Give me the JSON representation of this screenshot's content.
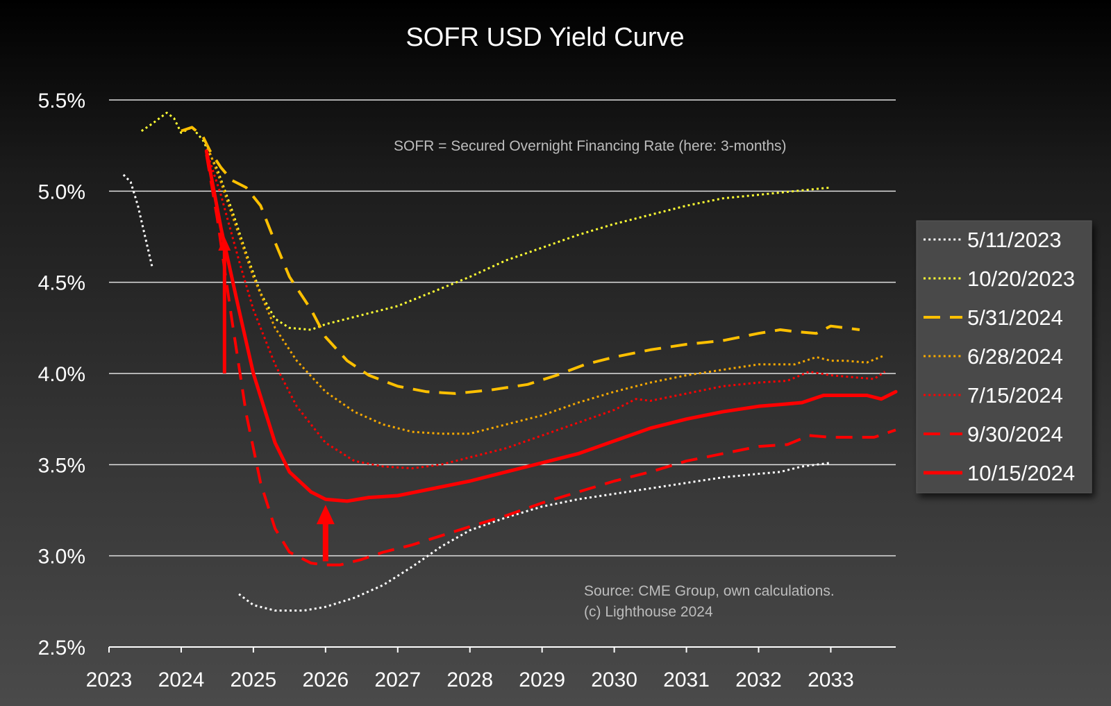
{
  "colors": {
    "white": "#ffffff",
    "yellow": "#ffff33",
    "gold": "#ffc000",
    "orange": "#f5a800",
    "red": "#ff0000",
    "grid": "#e0e0e0",
    "note_text": "#bdbdbd",
    "legend_bg": "#4a4a4a"
  },
  "chart_data": {
    "type": "line",
    "title": "SOFR USD Yield Curve",
    "xlabel": "",
    "ylabel": "",
    "xlim": [
      2023,
      2033.9
    ],
    "ylim": [
      2.5,
      5.5
    ],
    "x_ticks": [
      2023,
      2024,
      2025,
      2026,
      2027,
      2028,
      2029,
      2030,
      2031,
      2032,
      2033
    ],
    "x_tick_labels": [
      "2023",
      "2024",
      "2025",
      "2026",
      "2027",
      "2028",
      "2029",
      "2030",
      "2031",
      "2032",
      "2033"
    ],
    "y_ticks": [
      2.5,
      3.0,
      3.5,
      4.0,
      4.5,
      5.0,
      5.5
    ],
    "y_tick_labels": [
      "2.5%",
      "3.0%",
      "3.5%",
      "4.0%",
      "4.5%",
      "5.0%",
      "5.5%"
    ],
    "grid": "horizontal",
    "legend_position": "right",
    "annotations": [
      "SOFR = Secured Overnight Financing Rate (here: 3-months)",
      "Source: CME Group, own calculations.",
      "(c) Lighthouse 2024"
    ],
    "arrow_annotations": [
      {
        "from": [
          2024.6,
          4.0
        ],
        "to": [
          2024.6,
          4.75
        ],
        "color": "red"
      },
      {
        "from": [
          2026.0,
          2.97
        ],
        "to": [
          2026.0,
          3.28
        ],
        "color": "red"
      }
    ],
    "series": [
      {
        "name": "5/11/2023",
        "style": "dotted",
        "color": "white",
        "width": 3,
        "x": [
          2023.2,
          2023.3,
          2023.4,
          2023.5,
          2023.6
        ],
        "y": [
          5.09,
          5.05,
          4.92,
          4.75,
          4.58
        ]
      },
      {
        "name": "5/11/2023",
        "legend": false,
        "style": "dotted",
        "color": "white",
        "width": 3,
        "x": [
          2024.8,
          2025.0,
          2025.3,
          2025.7,
          2026.0,
          2026.4,
          2026.8,
          2027.2,
          2027.6,
          2028.0,
          2028.5,
          2029.0,
          2029.5,
          2030.0,
          2030.5,
          2031.0,
          2031.5,
          2032.0,
          2032.3,
          2032.6,
          2033.0
        ],
        "y": [
          2.79,
          2.73,
          2.7,
          2.7,
          2.72,
          2.77,
          2.84,
          2.94,
          3.05,
          3.14,
          3.21,
          3.27,
          3.31,
          3.34,
          3.37,
          3.4,
          3.43,
          3.45,
          3.46,
          3.49,
          3.51
        ]
      },
      {
        "name": "10/20/2023",
        "style": "dotted",
        "color": "yellow",
        "width": 3,
        "x": [
          2023.45,
          2023.6,
          2023.8,
          2023.9,
          2024.0,
          2024.15,
          2024.3,
          2024.5,
          2024.7,
          2024.9,
          2025.1,
          2025.3,
          2025.5,
          2025.8,
          2026.0,
          2026.5,
          2027.0,
          2027.5,
          2028.0,
          2028.5,
          2029.0,
          2029.5,
          2030.0,
          2030.5,
          2031.0,
          2031.5,
          2032.0,
          2032.5,
          2033.0
        ],
        "y": [
          5.33,
          5.37,
          5.43,
          5.4,
          5.32,
          5.35,
          5.28,
          5.12,
          4.9,
          4.66,
          4.44,
          4.3,
          4.25,
          4.24,
          4.27,
          4.32,
          4.37,
          4.45,
          4.53,
          4.62,
          4.69,
          4.76,
          4.82,
          4.87,
          4.92,
          4.96,
          4.98,
          5.0,
          5.02
        ]
      },
      {
        "name": "5/31/2024",
        "style": "dashed",
        "color": "gold",
        "width": 4,
        "x": [
          2024.0,
          2024.15,
          2024.3,
          2024.4,
          2024.55,
          2024.7,
          2024.9,
          2025.1,
          2025.3,
          2025.5,
          2025.8,
          2026.0,
          2026.3,
          2026.6,
          2027.0,
          2027.4,
          2027.8,
          2028.3,
          2028.8,
          2029.2,
          2029.6,
          2030.0,
          2030.5,
          2031.0,
          2031.5,
          2032.0,
          2032.3,
          2032.5,
          2032.8,
          2033.0,
          2033.2,
          2033.4
        ],
        "y": [
          5.33,
          5.35,
          5.3,
          5.22,
          5.13,
          5.06,
          5.02,
          4.92,
          4.72,
          4.53,
          4.35,
          4.2,
          4.07,
          3.99,
          3.93,
          3.9,
          3.89,
          3.91,
          3.94,
          3.99,
          4.05,
          4.09,
          4.13,
          4.16,
          4.18,
          4.22,
          4.24,
          4.23,
          4.22,
          4.26,
          4.25,
          4.24
        ]
      },
      {
        "name": "6/28/2024",
        "style": "dotted",
        "color": "orange",
        "width": 3,
        "x": [
          2024.35,
          2024.55,
          2024.8,
          2025.0,
          2025.3,
          2025.6,
          2026.0,
          2026.4,
          2026.8,
          2027.2,
          2027.6,
          2028.0,
          2028.5,
          2029.0,
          2029.5,
          2030.0,
          2030.5,
          2031.0,
          2031.5,
          2032.0,
          2032.3,
          2032.5,
          2032.8,
          2033.0,
          2033.2,
          2033.5,
          2033.75
        ],
        "y": [
          5.26,
          5.05,
          4.76,
          4.53,
          4.25,
          4.07,
          3.9,
          3.79,
          3.72,
          3.68,
          3.67,
          3.67,
          3.72,
          3.77,
          3.84,
          3.9,
          3.95,
          3.99,
          4.02,
          4.05,
          4.05,
          4.05,
          4.09,
          4.07,
          4.07,
          4.06,
          4.1
        ]
      },
      {
        "name": "7/15/2024",
        "style": "dotted",
        "color": "red",
        "width": 3,
        "x": [
          2024.35,
          2024.55,
          2024.8,
          2025.0,
          2025.3,
          2025.6,
          2026.0,
          2026.4,
          2026.8,
          2027.2,
          2027.6,
          2028.0,
          2028.5,
          2029.0,
          2029.5,
          2030.0,
          2030.3,
          2030.5,
          2031.0,
          2031.5,
          2032.0,
          2032.4,
          2032.7,
          2033.0,
          2033.3,
          2033.6,
          2033.75
        ],
        "y": [
          5.22,
          4.98,
          4.62,
          4.35,
          4.05,
          3.82,
          3.62,
          3.52,
          3.49,
          3.48,
          3.5,
          3.54,
          3.59,
          3.66,
          3.73,
          3.8,
          3.86,
          3.85,
          3.89,
          3.93,
          3.95,
          3.96,
          4.01,
          3.99,
          3.98,
          3.97,
          4.01
        ]
      },
      {
        "name": "9/30/2024",
        "style": "dashed",
        "color": "red",
        "width": 4,
        "x": [
          2024.35,
          2024.5,
          2024.7,
          2024.9,
          2025.1,
          2025.3,
          2025.5,
          2025.8,
          2026.0,
          2026.2,
          2026.5,
          2026.8,
          2027.2,
          2027.6,
          2028.0,
          2028.5,
          2029.0,
          2029.5,
          2030.0,
          2030.5,
          2031.0,
          2031.5,
          2032.0,
          2032.4,
          2032.7,
          2033.0,
          2033.3,
          2033.6,
          2033.9
        ],
        "y": [
          5.2,
          4.85,
          4.3,
          3.78,
          3.4,
          3.15,
          3.02,
          2.96,
          2.95,
          2.95,
          2.98,
          3.02,
          3.06,
          3.11,
          3.16,
          3.22,
          3.29,
          3.35,
          3.41,
          3.46,
          3.52,
          3.56,
          3.6,
          3.61,
          3.66,
          3.65,
          3.65,
          3.65,
          3.69
        ]
      },
      {
        "name": "10/15/2024",
        "style": "solid",
        "color": "red",
        "width": 5,
        "x": [
          2024.35,
          2024.55,
          2024.8,
          2025.0,
          2025.3,
          2025.5,
          2025.8,
          2026.0,
          2026.3,
          2026.6,
          2027.0,
          2027.5,
          2028.0,
          2028.5,
          2029.0,
          2029.5,
          2030.0,
          2030.5,
          2031.0,
          2031.5,
          2032.0,
          2032.3,
          2032.6,
          2032.9,
          2033.1,
          2033.3,
          2033.5,
          2033.7,
          2033.9
        ],
        "y": [
          5.22,
          4.8,
          4.35,
          4.0,
          3.62,
          3.46,
          3.35,
          3.31,
          3.3,
          3.32,
          3.33,
          3.37,
          3.41,
          3.46,
          3.51,
          3.56,
          3.63,
          3.7,
          3.75,
          3.79,
          3.82,
          3.83,
          3.84,
          3.88,
          3.88,
          3.88,
          3.88,
          3.86,
          3.9
        ]
      }
    ],
    "legend": [
      "5/11/2023",
      "10/20/2023",
      "5/31/2024",
      "6/28/2024",
      "7/15/2024",
      "9/30/2024",
      "10/15/2024"
    ]
  }
}
